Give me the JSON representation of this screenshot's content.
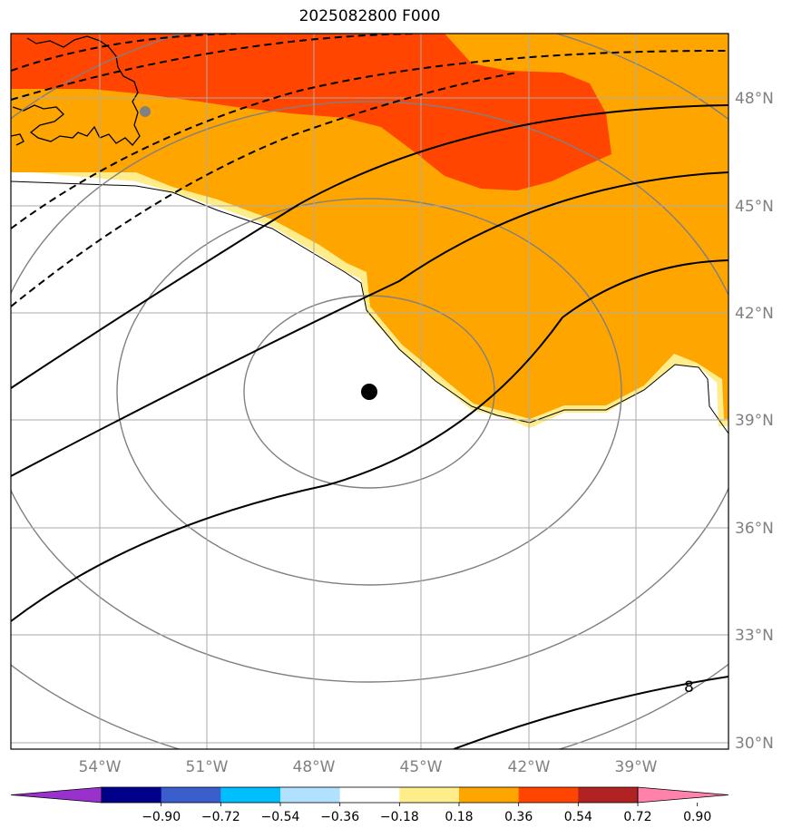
{
  "title": "2025082800 F000",
  "lon_labels": [
    "54°W",
    "51°W",
    "48°W",
    "45°W",
    "42°W",
    "39°W"
  ],
  "lat_labels": [
    "48°N",
    "45°N",
    "42°N",
    "39°N",
    "36°N",
    "33°N",
    "30°N"
  ],
  "contour_label": "8",
  "colorbar": {
    "colors": [
      "#9932CC",
      "#00008B",
      "#3A5FCD",
      "#00BFFF",
      "#B0E2FF",
      "#FFFFFF",
      "#FFEC8B",
      "#FFA500",
      "#FF4500",
      "#B22222",
      "#FF82AB"
    ],
    "tick_labels": [
      "−0.90",
      "−0.72",
      "−0.54",
      "−0.36",
      "−0.18",
      "0.18",
      "0.36",
      "0.54",
      "0.72",
      "0.90"
    ]
  },
  "storm_center": {
    "lon": -46.5,
    "lat": 39.8
  }
}
